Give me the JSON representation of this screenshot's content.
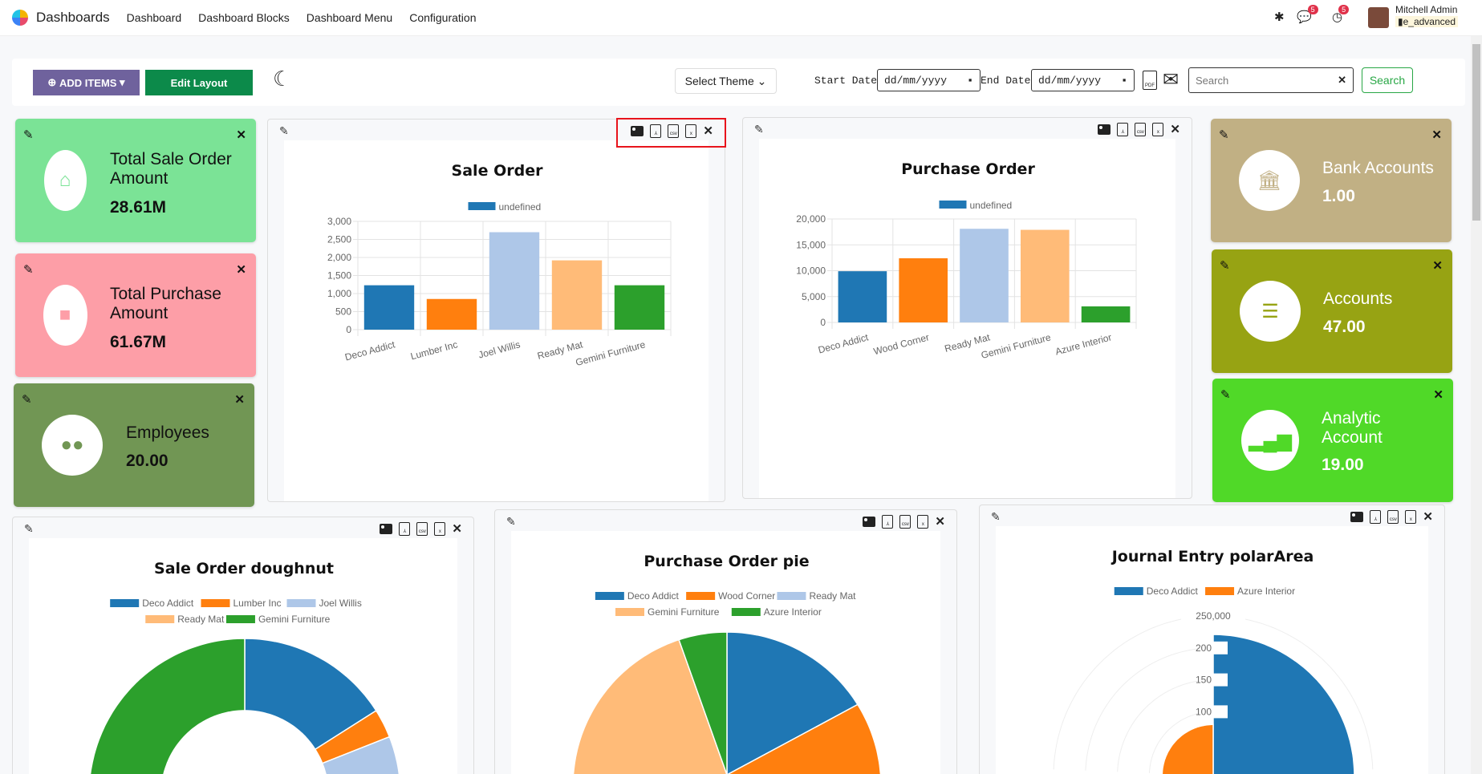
{
  "nav": {
    "app": "Dashboards",
    "menu": [
      "Dashboard",
      "Dashboard Blocks",
      "Dashboard Menu",
      "Configuration"
    ],
    "chat_badge": "5",
    "activity_badge": "5",
    "user": "Mitchell Admin",
    "db": "e_advanced"
  },
  "toolbar": {
    "add_items": "ADD ITEMS",
    "edit_layout": "Edit Layout",
    "select_theme": "Select Theme",
    "start_label": "Start Date:",
    "start_value": "dd/mm/yyyy",
    "end_label": "End Date:",
    "end_value": "dd/mm/yyyy",
    "search_placeholder": "Search",
    "search_button": "Search"
  },
  "colors": {
    "palette": [
      "#1f77b4",
      "#ff7f0e",
      "#aec7e8",
      "#ffbb78",
      "#2ca02c"
    ],
    "add_items": "#6f629d",
    "edit_layout": "#0c8a4a",
    "search": "#28a745",
    "highlight": "#e8141c"
  },
  "tiles": [
    {
      "title": "Total Sale Order Amount",
      "value": "28.61M",
      "color": "#7be396",
      "icon": "store-icon"
    },
    {
      "title": "Total Purchase Amount",
      "value": "61.67M",
      "color": "#fd9ea7",
      "icon": "shopping-bag-icon"
    },
    {
      "title": "Employees",
      "value": "20.00",
      "color": "#719654",
      "icon": "users-icon"
    },
    {
      "title": "Bank Accounts",
      "value": "1.00",
      "color": "#c1b084",
      "icon": "bank-icon"
    },
    {
      "title": "Accounts",
      "value": "47.00",
      "color": "#97a313",
      "icon": "contact-card-icon"
    },
    {
      "title": "Analytic Account",
      "value": "19.00",
      "color": "#50d928",
      "icon": "bar-chart-icon"
    }
  ],
  "chart_data": [
    {
      "type": "bar",
      "title": "Sale Order",
      "legend": [
        "undefined"
      ],
      "categories": [
        "Deco Addict",
        "Lumber Inc",
        "Joel Willis",
        "Ready Mat",
        "Gemini Furniture"
      ],
      "values": [
        1230,
        850,
        2700,
        1920,
        1230
      ],
      "ylim": [
        0,
        3000
      ],
      "yticks": [
        "0",
        "500",
        "1,000",
        "1,500",
        "2,000",
        "2,500",
        "3,000"
      ],
      "grid": true,
      "legend_position": "top"
    },
    {
      "type": "bar",
      "title": "Purchase Order",
      "legend": [
        "undefined"
      ],
      "categories": [
        "Deco Addict",
        "Wood Corner",
        "Ready Mat",
        "Gemini Furniture",
        "Azure Interior"
      ],
      "values": [
        9900,
        12400,
        18100,
        17900,
        3100
      ],
      "ylim": [
        0,
        20000
      ],
      "yticks": [
        "0",
        "5,000",
        "10,000",
        "15,000",
        "20,000"
      ],
      "grid": true,
      "legend_position": "top"
    },
    {
      "type": "doughnut",
      "title": "Sale Order doughnut",
      "legend": [
        "Deco Addict",
        "Lumber Inc",
        "Joel Willis",
        "Ready Mat",
        "Gemini Furniture"
      ],
      "values": [
        16,
        3,
        20,
        20,
        41
      ],
      "legend_position": "top"
    },
    {
      "type": "pie",
      "title": "Purchase Order pie",
      "legend": [
        "Deco Addict",
        "Wood Corner",
        "Ready Mat",
        "Gemini Furniture",
        "Azure Interior"
      ],
      "values": [
        9900,
        12400,
        18100,
        17900,
        3100
      ],
      "legend_position": "top"
    },
    {
      "type": "polarArea",
      "title": "Journal Entry polarArea",
      "legend": [
        "Deco Addict",
        "Azure Interior"
      ],
      "values": [
        221000,
        80000
      ],
      "rmax": 250000,
      "rticks": [
        "100",
        "150",
        "200",
        "250,000"
      ],
      "legend_position": "top"
    }
  ]
}
